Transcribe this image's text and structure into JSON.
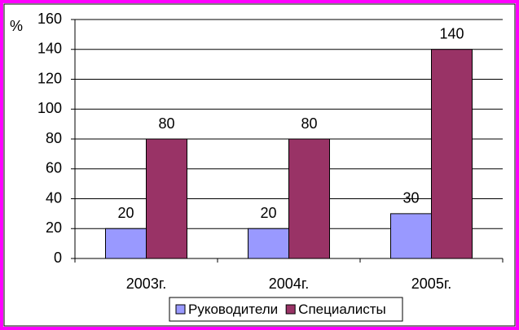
{
  "chart_data": {
    "type": "bar",
    "y_label": "%",
    "categories": [
      "2003г.",
      "2004г.",
      "2005г."
    ],
    "series": [
      {
        "name": "Руководители",
        "color": "#9999ff",
        "values": [
          20,
          20,
          30
        ]
      },
      {
        "name": "Специалисты",
        "color": "#993366",
        "values": [
          80,
          80,
          140
        ]
      }
    ],
    "ylim": [
      0,
      160
    ],
    "yticks": [
      0,
      20,
      40,
      60,
      80,
      100,
      120,
      140,
      160
    ],
    "grid": true,
    "legend": "bottom"
  }
}
